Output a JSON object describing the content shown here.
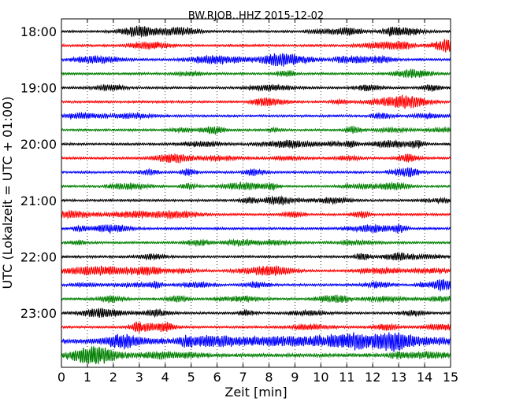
{
  "chart_data": {
    "type": "line",
    "title": "BW.RJOB..HHZ 2015-12-02",
    "xlabel": "Zeit  [min]",
    "ylabel": "UTC (Lokalzeit = UTC + 01:00)",
    "xlim": [
      0,
      15
    ],
    "x_ticks": [
      "0",
      "1",
      "2",
      "3",
      "4",
      "5",
      "6",
      "7",
      "8",
      "9",
      "10",
      "11",
      "12",
      "13",
      "14",
      "15"
    ],
    "y_ticks": [
      "18:00",
      "19:00",
      "20:00",
      "21:00",
      "22:00",
      "23:00"
    ],
    "trace_interval_minutes": 15,
    "first_trace": "18:00",
    "grid": "vertical dotted at each minute",
    "trace_colors": [
      "#000000",
      "#ff0000",
      "#0000ff",
      "#008000"
    ],
    "trace_count": 24
  }
}
